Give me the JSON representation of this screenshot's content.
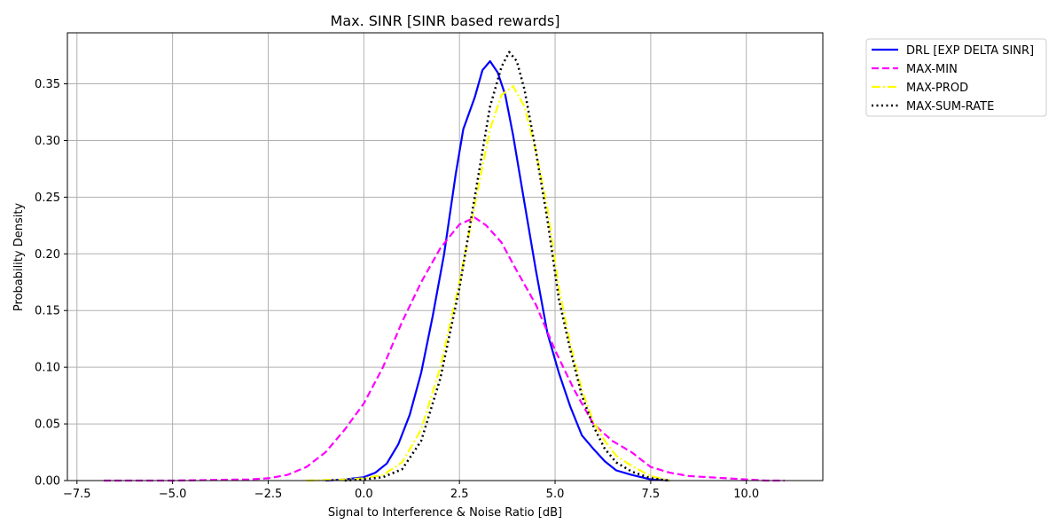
{
  "chart_data": {
    "type": "line",
    "title": "Max. SINR [SINR based rewards]",
    "xlabel": "Signal to Interference & Noise Ratio [dB]",
    "ylabel": "Probability Density",
    "xlim": [
      -7.75,
      12.0
    ],
    "ylim": [
      0.0,
      0.395
    ],
    "xticks": [
      -7.5,
      -5.0,
      -2.5,
      0.0,
      2.5,
      5.0,
      7.5,
      10.0
    ],
    "xtick_labels": [
      "−7.5",
      "−5.0",
      "−2.5",
      "0.0",
      "2.5",
      "5.0",
      "7.5",
      "10.0"
    ],
    "yticks": [
      0.0,
      0.05,
      0.1,
      0.15,
      0.2,
      0.25,
      0.3,
      0.35
    ],
    "ytick_labels": [
      "0.00",
      "0.05",
      "0.10",
      "0.15",
      "0.20",
      "0.25",
      "0.30",
      "0.35"
    ],
    "grid": true,
    "legend_position": "outside-top-right",
    "series": [
      {
        "name": "DRL [EXP DELTA SINR]",
        "color": "#0000ff",
        "style": "solid",
        "x": [
          -1.0,
          -0.5,
          0.0,
          0.3,
          0.6,
          0.9,
          1.2,
          1.5,
          1.8,
          2.1,
          2.4,
          2.6,
          2.9,
          3.1,
          3.3,
          3.5,
          3.7,
          3.9,
          4.2,
          4.5,
          4.8,
          5.1,
          5.4,
          5.7,
          6.0,
          6.3,
          6.6,
          7.0,
          7.5,
          8.0
        ],
        "y": [
          0.0,
          0.001,
          0.003,
          0.007,
          0.015,
          0.032,
          0.058,
          0.095,
          0.145,
          0.2,
          0.27,
          0.31,
          0.338,
          0.362,
          0.37,
          0.36,
          0.34,
          0.305,
          0.245,
          0.185,
          0.13,
          0.095,
          0.065,
          0.04,
          0.028,
          0.017,
          0.009,
          0.005,
          0.001,
          0.0
        ]
      },
      {
        "name": "MAX-MIN",
        "color": "#ff00ff",
        "style": "dashed",
        "x": [
          -6.8,
          -5.0,
          -3.0,
          -2.5,
          -2.0,
          -1.5,
          -1.0,
          -0.5,
          0.0,
          0.5,
          1.0,
          1.5,
          2.0,
          2.5,
          2.9,
          3.2,
          3.6,
          4.0,
          4.5,
          5.0,
          5.5,
          6.0,
          6.5,
          7.0,
          7.5,
          8.0,
          8.5,
          9.0,
          9.5,
          10.0,
          10.5,
          11.0
        ],
        "y": [
          0.0,
          0.0,
          0.001,
          0.002,
          0.005,
          0.012,
          0.025,
          0.045,
          0.068,
          0.1,
          0.14,
          0.175,
          0.205,
          0.226,
          0.232,
          0.225,
          0.21,
          0.185,
          0.155,
          0.115,
          0.08,
          0.05,
          0.035,
          0.025,
          0.012,
          0.007,
          0.004,
          0.003,
          0.002,
          0.001,
          0.0,
          0.0
        ]
      },
      {
        "name": "MAX-PROD",
        "color": "#ffff00",
        "style": "dashdot",
        "x": [
          -1.5,
          -0.5,
          0.0,
          0.5,
          1.0,
          1.5,
          2.0,
          2.5,
          3.0,
          3.3,
          3.6,
          3.9,
          4.2,
          4.5,
          4.8,
          5.1,
          5.4,
          5.7,
          6.0,
          6.3,
          6.6,
          7.0,
          7.5,
          8.0
        ],
        "y": [
          0.0,
          0.001,
          0.002,
          0.005,
          0.016,
          0.045,
          0.1,
          0.175,
          0.26,
          0.31,
          0.34,
          0.348,
          0.33,
          0.29,
          0.24,
          0.17,
          0.12,
          0.08,
          0.052,
          0.035,
          0.022,
          0.013,
          0.004,
          0.0
        ]
      },
      {
        "name": "MAX-SUM-RATE",
        "color": "#000000",
        "style": "dotted",
        "x": [
          -0.5,
          0.0,
          0.5,
          1.0,
          1.5,
          2.0,
          2.5,
          3.0,
          3.3,
          3.6,
          3.8,
          4.0,
          4.2,
          4.5,
          4.8,
          5.1,
          5.4,
          5.7,
          6.0,
          6.3,
          6.6,
          7.0,
          7.5,
          8.0
        ],
        "y": [
          0.0,
          0.001,
          0.003,
          0.01,
          0.035,
          0.09,
          0.17,
          0.27,
          0.33,
          0.365,
          0.378,
          0.37,
          0.345,
          0.29,
          0.23,
          0.16,
          0.115,
          0.075,
          0.048,
          0.028,
          0.016,
          0.008,
          0.002,
          0.0
        ]
      }
    ]
  }
}
